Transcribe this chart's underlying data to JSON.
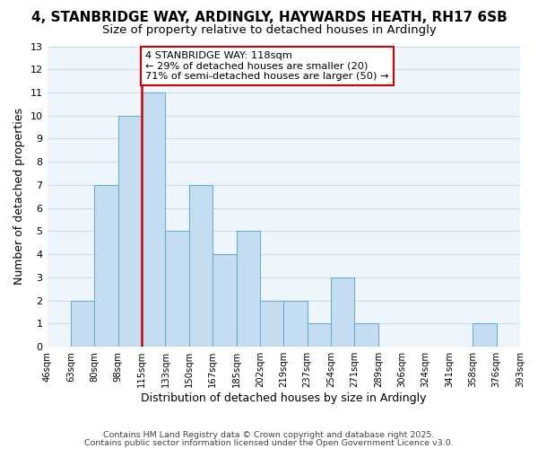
{
  "title": "4, STANBRIDGE WAY, ARDINGLY, HAYWARDS HEATH, RH17 6SB",
  "subtitle": "Size of property relative to detached houses in Ardingly",
  "xlabel": "Distribution of detached houses by size in Ardingly",
  "ylabel": "Number of detached properties",
  "bin_labels": [
    "46sqm",
    "63sqm",
    "80sqm",
    "98sqm",
    "115sqm",
    "133sqm",
    "150sqm",
    "167sqm",
    "185sqm",
    "202sqm",
    "219sqm",
    "237sqm",
    "254sqm",
    "271sqm",
    "289sqm",
    "306sqm",
    "324sqm",
    "341sqm",
    "358sqm",
    "376sqm",
    "393sqm"
  ],
  "bar_heights": [
    0,
    2,
    7,
    10,
    11,
    5,
    7,
    4,
    5,
    2,
    2,
    1,
    3,
    1,
    0,
    0,
    0,
    0,
    1,
    0
  ],
  "bar_color": "#c5ddf0",
  "bar_edge_color": "#6aaed6",
  "reference_line_color": "#cc0000",
  "annotation_text": "4 STANBRIDGE WAY: 118sqm\n← 29% of detached houses are smaller (20)\n71% of semi-detached houses are larger (50) →",
  "annotation_box_color": "#ffffff",
  "annotation_box_edge_color": "#cc0000",
  "ylim": [
    0,
    13
  ],
  "yticks": [
    0,
    1,
    2,
    3,
    4,
    5,
    6,
    7,
    8,
    9,
    10,
    11,
    12,
    13
  ],
  "grid_color": "#c8dff0",
  "bg_color": "#eef6fc",
  "footer1": "Contains HM Land Registry data © Crown copyright and database right 2025.",
  "footer2": "Contains public sector information licensed under the Open Government Licence v3.0.",
  "title_fontsize": 11,
  "subtitle_fontsize": 9.5,
  "annotation_fontsize": 8.2,
  "footer_fontsize": 6.8
}
